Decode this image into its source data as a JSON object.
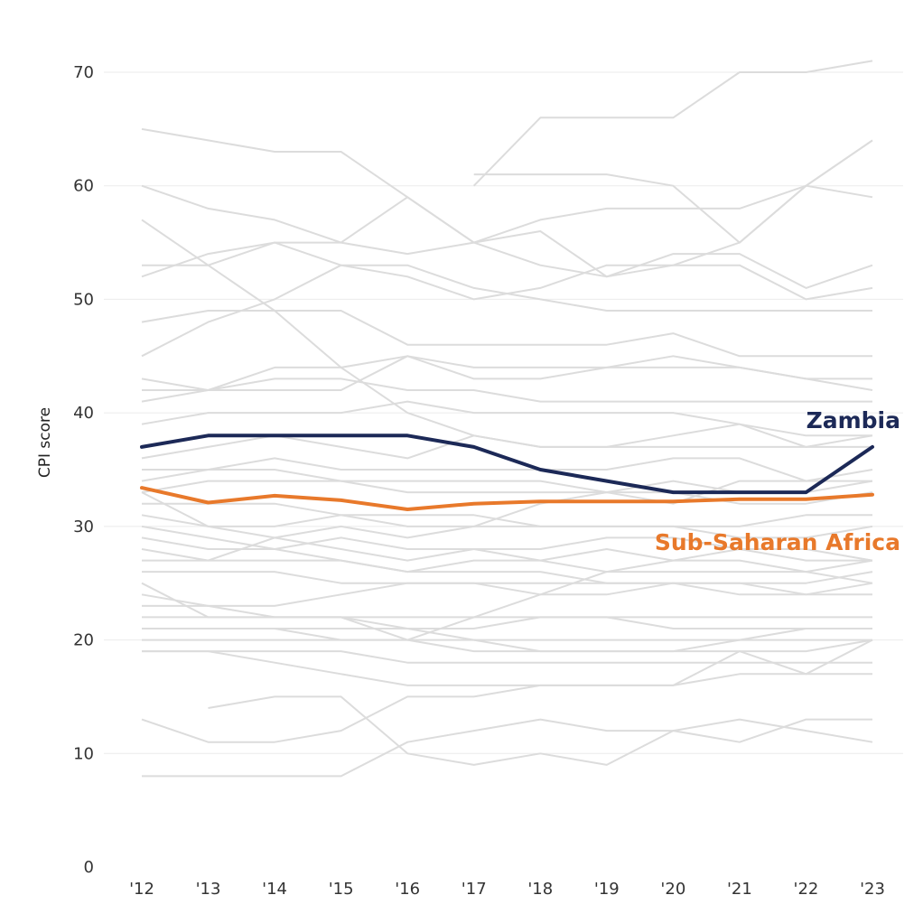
{
  "chart_data": {
    "type": "line",
    "ylabel": "CPI score",
    "ylim": [
      0,
      70
    ],
    "yticks": [
      0,
      10,
      20,
      30,
      40,
      50,
      60,
      70
    ],
    "x": [
      "'12",
      "'13",
      "'14",
      "'15",
      "'16",
      "'17",
      "'18",
      "'19",
      "'20",
      "'21",
      "'22",
      "'23"
    ],
    "grid": "horizontal",
    "highlight_series": [
      {
        "name": "Zambia",
        "color": "#1c2957",
        "values": [
          37,
          38,
          38,
          38,
          38,
          37,
          35,
          34,
          33,
          33,
          33,
          37
        ]
      },
      {
        "name": "Sub-Saharan Africa",
        "color": "#e8792b",
        "values": [
          33.4,
          32.1,
          32.7,
          32.3,
          31.5,
          32,
          32.2,
          32.2,
          32.2,
          32.4,
          32.4,
          32.8
        ]
      }
    ],
    "background_color": "#dcdcdc",
    "background_series": [
      {
        "values": [
          65,
          64,
          63,
          63,
          59,
          55,
          56,
          52,
          54,
          54,
          51,
          53
        ]
      },
      {
        "values": [
          60,
          58,
          57,
          55,
          59,
          55,
          57,
          58,
          58,
          58,
          60,
          64
        ]
      },
      {
        "values": [
          57,
          53,
          49,
          44,
          40,
          38,
          37,
          37,
          37,
          37,
          37,
          37
        ]
      },
      {
        "values": [
          53,
          53,
          55,
          55,
          54,
          55,
          53,
          52,
          53,
          55,
          60,
          59
        ]
      },
      {
        "values": [
          52,
          54,
          55,
          53,
          52,
          50,
          51,
          53,
          53,
          53,
          50,
          51
        ]
      },
      {
        "values": [
          48,
          49,
          49,
          49,
          46,
          46,
          46,
          46,
          47,
          45,
          45,
          45
        ]
      },
      {
        "values": [
          45,
          48,
          50,
          53,
          53,
          51,
          50,
          49,
          49,
          49,
          49,
          49
        ]
      },
      {
        "values": [
          43,
          42,
          42,
          42,
          45,
          43,
          43,
          44,
          44,
          44,
          43,
          43
        ]
      },
      {
        "values": [
          42,
          42,
          44,
          44,
          45,
          44,
          44,
          44,
          45,
          44,
          43,
          42
        ]
      },
      {
        "values": [
          41,
          42,
          43,
          43,
          42,
          42,
          41,
          41,
          41,
          41,
          41,
          41
        ]
      },
      {
        "values": [
          39,
          40,
          40,
          40,
          41,
          40,
          40,
          40,
          40,
          39,
          38,
          38
        ]
      },
      {
        "values": [
          35,
          35,
          36,
          35,
          35,
          35,
          35,
          35,
          36,
          36,
          34,
          34
        ]
      },
      {
        "values": [
          33,
          34,
          34,
          34,
          33,
          33,
          33,
          33,
          33,
          32,
          32,
          33
        ]
      },
      {
        "values": [
          32,
          32,
          32,
          31,
          31,
          31,
          30,
          30,
          30,
          30,
          31,
          31
        ]
      },
      {
        "values": [
          31,
          30,
          30,
          31,
          30,
          30,
          30,
          30,
          30,
          29,
          29,
          30
        ]
      },
      {
        "values": [
          30,
          29,
          28,
          27,
          26,
          27,
          27,
          26,
          26,
          26,
          26,
          25
        ]
      },
      {
        "values": [
          29,
          28,
          28,
          29,
          28,
          28,
          28,
          29,
          29,
          28,
          28,
          27
        ]
      },
      {
        "values": [
          27,
          27,
          27,
          27,
          26,
          26,
          26,
          25,
          25,
          25,
          25,
          26
        ]
      },
      {
        "values": [
          26,
          26,
          26,
          25,
          25,
          25,
          24,
          24,
          25,
          25,
          24,
          24
        ]
      },
      {
        "values": [
          25,
          22,
          22,
          22,
          20,
          22,
          24,
          26,
          27,
          28,
          27,
          27
        ]
      },
      {
        "values": [
          24,
          23,
          22,
          22,
          21,
          21,
          22,
          22,
          22,
          22,
          22,
          22
        ]
      },
      {
        "values": [
          22,
          22,
          22,
          22,
          22,
          22,
          22,
          22,
          21,
          21,
          21,
          21
        ]
      },
      {
        "values": [
          21,
          21,
          21,
          21,
          21,
          20,
          20,
          20,
          20,
          20,
          20,
          20
        ]
      },
      {
        "values": [
          20,
          20,
          20,
          20,
          20,
          20,
          19,
          19,
          19,
          19,
          19,
          20
        ]
      },
      {
        "values": [
          19,
          19,
          19,
          19,
          18,
          18,
          18,
          18,
          18,
          18,
          18,
          18
        ]
      },
      {
        "values": [
          19,
          19,
          18,
          17,
          16,
          16,
          16,
          16,
          16,
          19,
          17,
          20
        ]
      },
      {
        "values": [
          13,
          11,
          11,
          12,
          15,
          15,
          16,
          16,
          16,
          17,
          17,
          17
        ]
      },
      {
        "values": [
          8,
          8,
          8,
          8,
          11,
          12,
          13,
          12,
          12,
          13,
          12,
          11
        ]
      },
      {
        "values": [
          null,
          14,
          15,
          15,
          10,
          9,
          10,
          9,
          12,
          11,
          13,
          13
        ]
      },
      {
        "values": [
          33,
          30,
          29,
          30,
          29,
          30,
          32,
          33,
          32,
          34,
          34,
          35
        ]
      },
      {
        "values": [
          null,
          null,
          null,
          null,
          null,
          60,
          66,
          66,
          66,
          70,
          70,
          71
        ]
      },
      {
        "values": [
          null,
          null,
          null,
          null,
          null,
          61,
          61,
          61,
          60,
          55,
          60,
          64
        ]
      },
      {
        "values": [
          36,
          37,
          38,
          37,
          36,
          38,
          37,
          37,
          38,
          39,
          37,
          38
        ]
      },
      {
        "values": [
          34,
          35,
          35,
          34,
          34,
          34,
          34,
          33,
          34,
          33,
          33,
          34
        ]
      },
      {
        "values": [
          28,
          27,
          29,
          28,
          27,
          28,
          27,
          28,
          27,
          27,
          26,
          27
        ]
      },
      {
        "values": [
          23,
          23,
          23,
          24,
          25,
          25,
          25,
          25,
          25,
          24,
          24,
          25
        ]
      },
      {
        "values": [
          21,
          21,
          21,
          20,
          20,
          19,
          19,
          19,
          19,
          20,
          21,
          21
        ]
      }
    ]
  }
}
